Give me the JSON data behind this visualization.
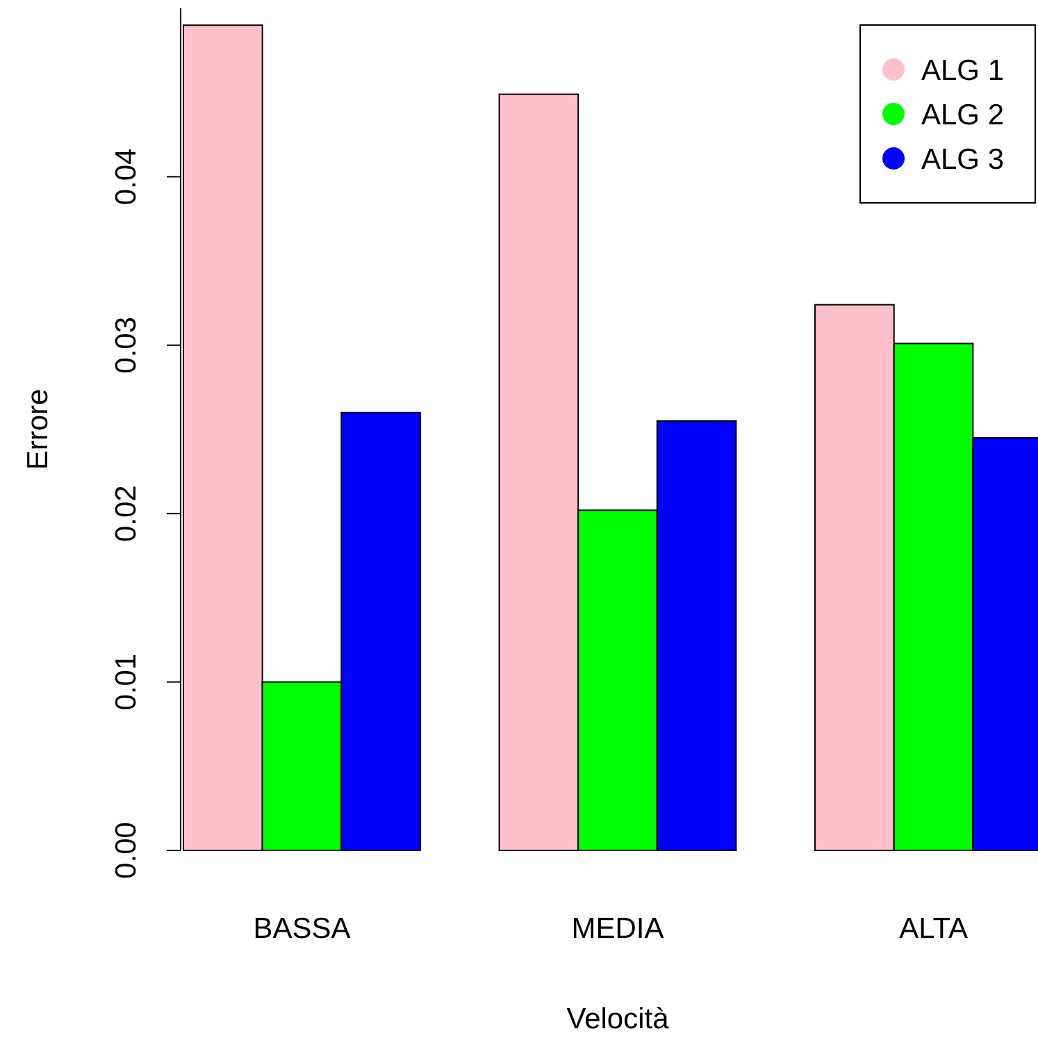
{
  "chart_data": {
    "type": "bar",
    "xlabel": "Velocità",
    "ylabel": "Errore",
    "categories": [
      "BASSA",
      "MEDIA",
      "ALTA"
    ],
    "series": [
      {
        "name": "ALG 1",
        "color": "#ffc0cb",
        "values": [
          0.049,
          0.0449,
          0.0324
        ]
      },
      {
        "name": "ALG 2",
        "color": "#00ff00",
        "values": [
          0.01,
          0.0202,
          0.0301
        ]
      },
      {
        "name": "ALG 3",
        "color": "#0000ff",
        "values": [
          0.026,
          0.0255,
          0.0245
        ]
      }
    ],
    "ylim": [
      0,
      0.05
    ],
    "yticks": [
      {
        "value": 0,
        "label": "0.00"
      },
      {
        "value": 0.01,
        "label": "0.01"
      },
      {
        "value": 0.02,
        "label": "0.02"
      },
      {
        "value": 0.03,
        "label": "0.03"
      },
      {
        "value": 0.04,
        "label": "0.04"
      }
    ],
    "grid": false,
    "legend": "top right",
    "marker": "circle"
  }
}
